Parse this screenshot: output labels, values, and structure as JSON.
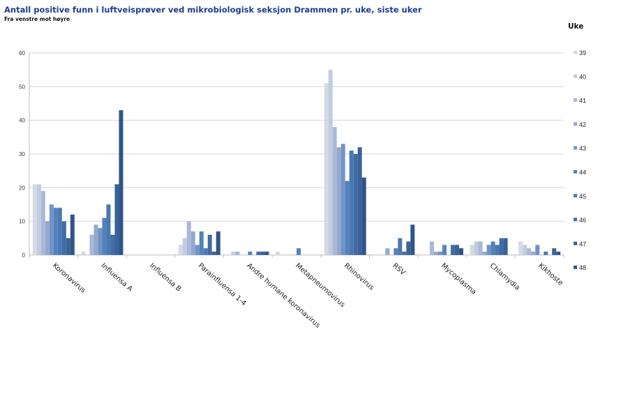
{
  "chart_data": {
    "type": "bar",
    "title": "Antall positive funn i luftveisprøver ved mikrobiologisk seksjon Drammen pr. uke, siste uker",
    "subtitle": "Fra venstre mot høyre",
    "xlabel": "",
    "ylabel": "",
    "ylim": [
      0,
      60
    ],
    "yticks": [
      0,
      10,
      20,
      30,
      40,
      50,
      60
    ],
    "grid": true,
    "legend_title": "Uke",
    "legend_position": "right",
    "categories": [
      "Koronavirus",
      "Influensa A",
      "Influensa B",
      "Parainfluensa 1-4",
      "Andre humane koronavirus",
      "Metapneumovirus",
      "Rhinovirus",
      "RSV",
      "Mycoplasma",
      "Chlamydia",
      "Kikhoste"
    ],
    "series": [
      {
        "name": "39",
        "color": "#d3dae6",
        "values": [
          21,
          1,
          0,
          3,
          0,
          1,
          51,
          0,
          0,
          3,
          4
        ]
      },
      {
        "name": "40",
        "color": "#c2cce0",
        "values": [
          21,
          0,
          0,
          5,
          1,
          0,
          55,
          0,
          0,
          4,
          3
        ]
      },
      {
        "name": "41",
        "color": "#aab8d6",
        "values": [
          19,
          6,
          0,
          10,
          1,
          0,
          38,
          0,
          4,
          4,
          2
        ]
      },
      {
        "name": "42",
        "color": "#93a8cf",
        "values": [
          10,
          9,
          0,
          7,
          0,
          0,
          32,
          2,
          1,
          1,
          1
        ]
      },
      {
        "name": "43",
        "color": "#7393c6",
        "values": [
          15,
          8,
          0,
          3,
          0,
          0,
          33,
          0,
          1,
          3,
          3
        ]
      },
      {
        "name": "44",
        "color": "#5282be",
        "values": [
          14,
          11,
          0,
          7,
          1,
          2,
          22,
          2,
          3,
          4,
          0
        ]
      },
      {
        "name": "45",
        "color": "#4a78b2",
        "values": [
          14,
          15,
          0,
          2,
          0,
          0,
          31,
          5,
          0,
          3,
          1
        ]
      },
      {
        "name": "46",
        "color": "#416ca5",
        "values": [
          10,
          6,
          0,
          6,
          1,
          0,
          30,
          1,
          3,
          5,
          0
        ]
      },
      {
        "name": "47",
        "color": "#3a6298",
        "values": [
          5,
          21,
          0,
          1,
          1,
          0,
          32,
          4,
          3,
          5,
          2
        ]
      },
      {
        "name": "48",
        "color": "#2f5587",
        "values": [
          12,
          43,
          0,
          7,
          1,
          0,
          23,
          9,
          2,
          0,
          1
        ]
      }
    ]
  }
}
